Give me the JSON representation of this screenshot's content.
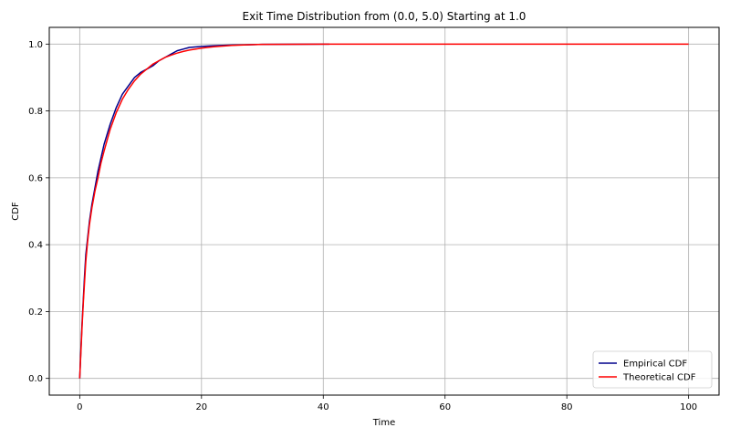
{
  "chart_data": {
    "type": "line",
    "title": "Exit Time Distribution from (0.0, 5.0) Starting at 1.0",
    "xlabel": "Time",
    "ylabel": "CDF",
    "xlim": [
      -5,
      105
    ],
    "ylim": [
      -0.05,
      1.05
    ],
    "xticks": [
      0,
      20,
      40,
      60,
      80,
      100
    ],
    "yticks": [
      0.0,
      0.2,
      0.4,
      0.6,
      0.8,
      1.0
    ],
    "xtick_labels": [
      "0",
      "20",
      "40",
      "60",
      "80",
      "100"
    ],
    "ytick_labels": [
      "0.0",
      "0.2",
      "0.4",
      "0.6",
      "0.8",
      "1.0"
    ],
    "grid": true,
    "legend_position": "bottom-right",
    "series": [
      {
        "name": "Empirical CDF",
        "color": "#00008b",
        "x": [
          0,
          0.2,
          0.4,
          0.6,
          0.8,
          1.0,
          1.3,
          1.6,
          2.0,
          2.5,
          3.0,
          3.5,
          4.0,
          5.0,
          6.0,
          7.0,
          8.0,
          9.0,
          10.0,
          11.0,
          12.0,
          13.0,
          14.0,
          15.0,
          16.0,
          17.0,
          18.0,
          20.0,
          22.0,
          25.0,
          28.0,
          30.0,
          35.0,
          41.0
        ],
        "y": [
          0.0,
          0.09,
          0.17,
          0.24,
          0.31,
          0.37,
          0.42,
          0.47,
          0.52,
          0.57,
          0.62,
          0.66,
          0.7,
          0.76,
          0.81,
          0.85,
          0.875,
          0.9,
          0.915,
          0.925,
          0.935,
          0.95,
          0.96,
          0.97,
          0.98,
          0.985,
          0.99,
          0.993,
          0.995,
          0.997,
          0.998,
          0.999,
          0.9995,
          1.0
        ]
      },
      {
        "name": "Theoretical CDF",
        "color": "#ff0000",
        "x": [
          0,
          0.2,
          0.4,
          0.6,
          0.8,
          1.0,
          1.3,
          1.6,
          2.0,
          2.5,
          3.0,
          3.5,
          4.0,
          5.0,
          6.0,
          7.0,
          8.0,
          9.0,
          10.0,
          11.0,
          12.0,
          13.0,
          14.0,
          15.0,
          16.0,
          17.0,
          18.0,
          20.0,
          22.0,
          25.0,
          28.0,
          30.0,
          35.0,
          40.0,
          50.0,
          60.0,
          70.0,
          80.0,
          90.0,
          100.0
        ],
        "y": [
          0.0,
          0.08,
          0.16,
          0.23,
          0.29,
          0.35,
          0.41,
          0.46,
          0.51,
          0.56,
          0.6,
          0.645,
          0.68,
          0.745,
          0.795,
          0.835,
          0.865,
          0.89,
          0.91,
          0.925,
          0.94,
          0.95,
          0.96,
          0.967,
          0.973,
          0.978,
          0.982,
          0.988,
          0.992,
          0.996,
          0.998,
          0.999,
          0.9995,
          0.9998,
          1.0,
          1.0,
          1.0,
          1.0,
          1.0,
          1.0
        ]
      }
    ]
  }
}
